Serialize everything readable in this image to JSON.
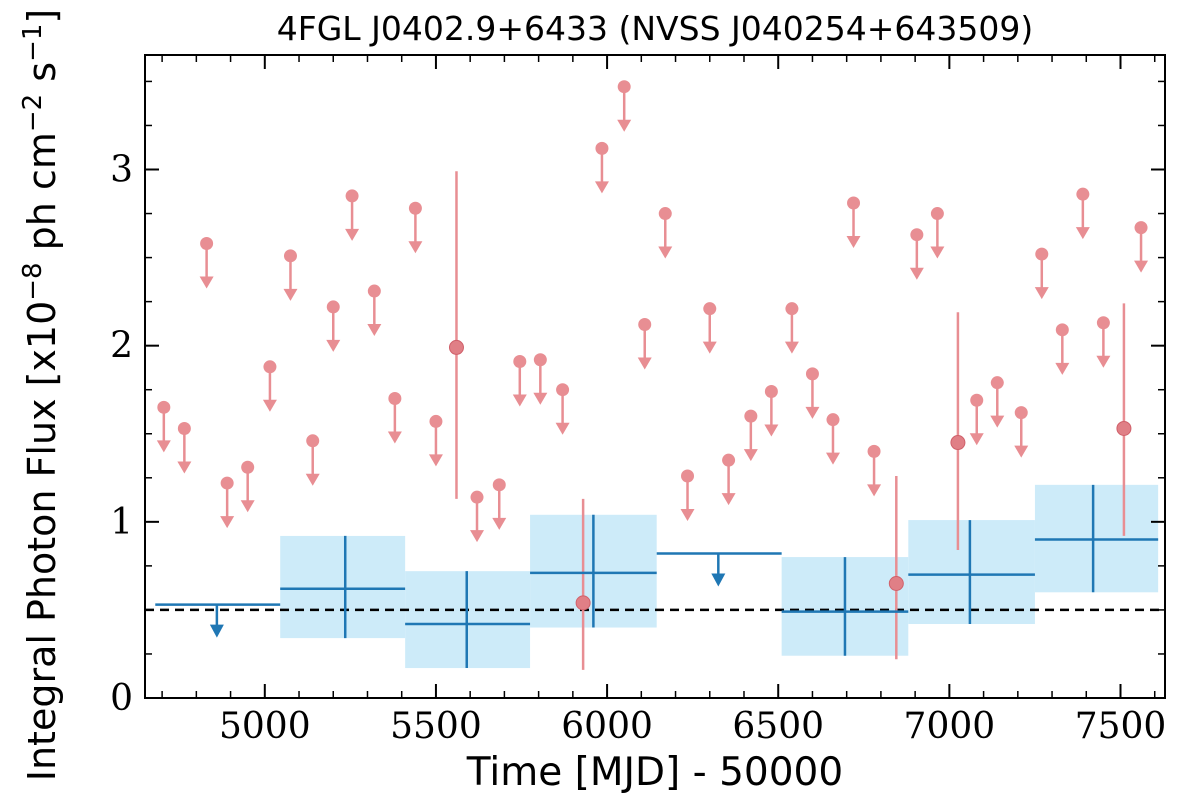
{
  "chart_data": {
    "type": "scatter",
    "title": "4FGL J0402.9+6433 (NVSS J040254+643509)",
    "xlabel": "Time [MJD] - 50000",
    "ylabel_parts": {
      "prefix": "Integral Photon Flux [x10",
      "exp1": "−8",
      "mid": " ph cm",
      "exp2": "−2",
      "mid2": " s",
      "exp3": "−1",
      "suffix": "]"
    },
    "xlim": [
      4650,
      7630
    ],
    "ylim": [
      0,
      3.65
    ],
    "xticks": [
      5000,
      5500,
      6000,
      6500,
      7000,
      7500
    ],
    "xtick_labels": [
      "5000",
      "5500",
      "6000",
      "6500",
      "7000",
      "7500"
    ],
    "yticks": [
      0,
      1,
      2,
      3
    ],
    "ytick_labels": [
      "0",
      "1",
      "2",
      "3"
    ],
    "reference_line_y": 0.5,
    "colors": {
      "short_bin": "#e88e93",
      "long_bin": "#1f77b4",
      "long_bin_band": "#cdebf9",
      "reference_line": "#000000"
    },
    "short_bin_upper_limits": [
      [
        4705,
        1.65
      ],
      [
        4765,
        1.53
      ],
      [
        4830,
        2.58
      ],
      [
        4890,
        1.22
      ],
      [
        4950,
        1.31
      ],
      [
        5015,
        1.88
      ],
      [
        5075,
        2.51
      ],
      [
        5140,
        1.46
      ],
      [
        5200,
        2.22
      ],
      [
        5255,
        2.85
      ],
      [
        5320,
        2.31
      ],
      [
        5380,
        1.7
      ],
      [
        5440,
        2.78
      ],
      [
        5500,
        1.57
      ],
      [
        5620,
        1.14
      ],
      [
        5685,
        1.21
      ],
      [
        5745,
        1.91
      ],
      [
        5805,
        1.92
      ],
      [
        5870,
        1.75
      ],
      [
        5985,
        3.12
      ],
      [
        6050,
        3.47
      ],
      [
        6110,
        2.12
      ],
      [
        6170,
        2.75
      ],
      [
        6235,
        1.26
      ],
      [
        6300,
        2.21
      ],
      [
        6355,
        1.35
      ],
      [
        6420,
        1.6
      ],
      [
        6480,
        1.74
      ],
      [
        6540,
        2.21
      ],
      [
        6600,
        1.84
      ],
      [
        6660,
        1.58
      ],
      [
        6720,
        2.81
      ],
      [
        6780,
        1.4
      ],
      [
        6905,
        2.63
      ],
      [
        6965,
        2.75
      ],
      [
        7080,
        1.69
      ],
      [
        7140,
        1.79
      ],
      [
        7210,
        1.62
      ],
      [
        7270,
        2.52
      ],
      [
        7330,
        2.09
      ],
      [
        7390,
        2.86
      ],
      [
        7450,
        2.13
      ],
      [
        7560,
        2.67
      ]
    ],
    "short_bin_detections": [
      {
        "x": 5560,
        "y": 1.99,
        "ylo": 1.13,
        "yhi": 2.99
      },
      {
        "x": 5930,
        "y": 0.54,
        "ylo": 0.16,
        "yhi": 1.13
      },
      {
        "x": 6845,
        "y": 0.65,
        "ylo": 0.22,
        "yhi": 1.26
      },
      {
        "x": 7025,
        "y": 1.45,
        "ylo": 0.84,
        "yhi": 2.19
      },
      {
        "x": 7510,
        "y": 1.53,
        "ylo": 0.92,
        "yhi": 2.24
      }
    ],
    "long_bin_detections": [
      {
        "x0": 5045,
        "x1": 5410,
        "x": 5235,
        "y": 0.62,
        "ylo": 0.34,
        "yhi": 0.92
      },
      {
        "x0": 5410,
        "x1": 5775,
        "x": 5590,
        "y": 0.42,
        "ylo": 0.17,
        "yhi": 0.72
      },
      {
        "x0": 5775,
        "x1": 6145,
        "x": 5960,
        "y": 0.71,
        "ylo": 0.4,
        "yhi": 1.04
      },
      {
        "x0": 6510,
        "x1": 6880,
        "x": 6695,
        "y": 0.49,
        "ylo": 0.24,
        "yhi": 0.8
      },
      {
        "x0": 6880,
        "x1": 7250,
        "x": 7060,
        "y": 0.7,
        "ylo": 0.42,
        "yhi": 1.01
      },
      {
        "x0": 7250,
        "x1": 7610,
        "x": 7420,
        "y": 0.9,
        "ylo": 0.6,
        "yhi": 1.21
      }
    ],
    "long_bin_upper_limits": [
      {
        "x0": 4680,
        "x1": 5045,
        "x": 4860,
        "y": 0.53
      },
      {
        "x0": 6145,
        "x1": 6510,
        "x": 6325,
        "y": 0.82
      }
    ]
  }
}
